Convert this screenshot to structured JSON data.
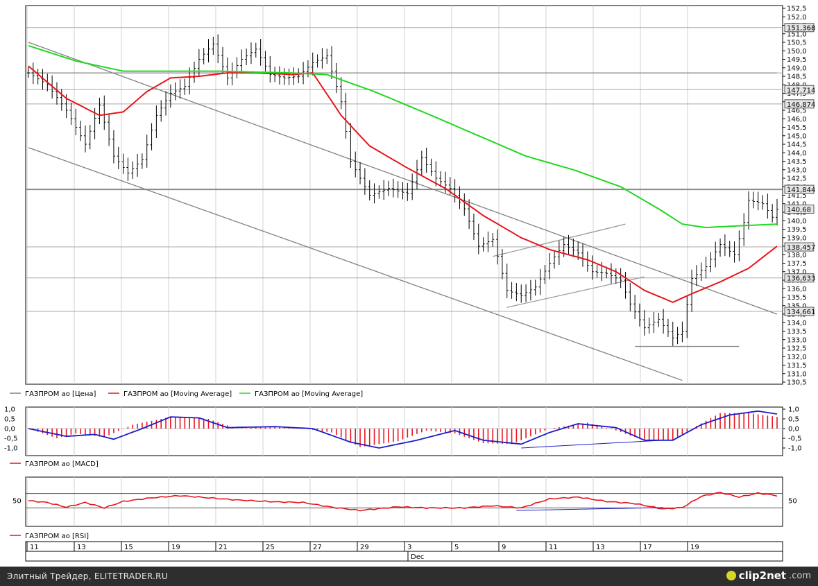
{
  "chart_data": [
    {
      "type": "line",
      "panel": "price",
      "title": "",
      "ylim": [
        130.5,
        152.5
      ],
      "y_ticks": [
        "152,5",
        "152,0",
        "151,5",
        "151,0",
        "150,5",
        "150,0",
        "149,5",
        "149,0",
        "148,5",
        "148,0",
        "147,5",
        "147,0",
        "146,5",
        "146,0",
        "145,5",
        "145,0",
        "144,5",
        "144,0",
        "143,5",
        "143,0",
        "142,5",
        "142,0",
        "141,5",
        "141,0",
        "140,5",
        "140,0",
        "139,5",
        "139,0",
        "138,5",
        "138,0",
        "137,5",
        "137,0",
        "136,5",
        "136,0",
        "135,5",
        "135,0",
        "134,5",
        "134,0",
        "133,5",
        "133,0",
        "132,5",
        "132,0",
        "131,5",
        "131,0",
        "130,5"
      ],
      "x_tick_labels": [
        "11",
        "13",
        "15",
        "19",
        "21",
        "25",
        "27",
        "29",
        "3",
        "5",
        "9",
        "11",
        "13",
        "17",
        "19"
      ],
      "x_month_label": "Dec",
      "price_markers": [
        "151,368",
        "147,714",
        "146,874",
        "141,844",
        "140,68",
        "138,457",
        "136,633",
        "134,661"
      ],
      "horizontal_levels": [
        151.368,
        148.7,
        147.714,
        146.874,
        141.844,
        138.457,
        136.633,
        134.661
      ],
      "grid": true,
      "legend": [
        {
          "name": "ГАЗПРОМ ао [Цена]",
          "color": "#808080"
        },
        {
          "name": "ГАЗПРОМ ао [Moving Average]",
          "color": "#e8141c"
        },
        {
          "name": "ГАЗПРОМ ао [Moving Average]",
          "color": "#20d820"
        }
      ],
      "price_path": [
        [
          0,
          148.7
        ],
        [
          4,
          148.0
        ],
        [
          8,
          146.5
        ],
        [
          12,
          144.5
        ],
        [
          15,
          146.8
        ],
        [
          18,
          143.8
        ],
        [
          21,
          142.8
        ],
        [
          24,
          143.6
        ],
        [
          27,
          146.2
        ],
        [
          30,
          147.5
        ],
        [
          33,
          147.9
        ],
        [
          36,
          149.5
        ],
        [
          39,
          150.4
        ],
        [
          42,
          148.4
        ],
        [
          45,
          149.5
        ],
        [
          48,
          150.1
        ],
        [
          51,
          148.6
        ],
        [
          54,
          148.4
        ],
        [
          57,
          148.5
        ],
        [
          60,
          149.3
        ],
        [
          63,
          149.7
        ],
        [
          66,
          147.0
        ],
        [
          68,
          143.5
        ],
        [
          72,
          141.5
        ],
        [
          76,
          141.9
        ],
        [
          80,
          141.6
        ],
        [
          83,
          143.7
        ],
        [
          86,
          142.5
        ],
        [
          89,
          141.9
        ],
        [
          92,
          140.7
        ],
        [
          95,
          138.5
        ],
        [
          98,
          138.9
        ],
        [
          101,
          135.9
        ],
        [
          104,
          135.6
        ],
        [
          107,
          136.1
        ],
        [
          110,
          137.5
        ],
        [
          113,
          138.6
        ],
        [
          116,
          138.1
        ],
        [
          119,
          137.0
        ],
        [
          122,
          136.9
        ],
        [
          125,
          136.5
        ],
        [
          127,
          135.1
        ],
        [
          130,
          133.7
        ],
        [
          133,
          134.2
        ],
        [
          136,
          133.1
        ],
        [
          138,
          133.5
        ],
        [
          140,
          136.6
        ],
        [
          143,
          137.3
        ],
        [
          146,
          138.6
        ],
        [
          149,
          138.0
        ],
        [
          151,
          139.9
        ],
        [
          152,
          141.2
        ],
        [
          155,
          141.0
        ],
        [
          157,
          140.2
        ],
        [
          158,
          140.68
        ]
      ],
      "series": [
        {
          "name": "ГАЗПРОМ ао [Moving Average]",
          "color": "#e8141c",
          "values": [
            [
              0,
              149.1
            ],
            [
              8,
              147.2
            ],
            [
              15,
              146.2
            ],
            [
              20,
              146.4
            ],
            [
              25,
              147.6
            ],
            [
              30,
              148.4
            ],
            [
              36,
              148.5
            ],
            [
              42,
              148.7
            ],
            [
              48,
              148.7
            ],
            [
              56,
              148.6
            ],
            [
              60,
              148.7
            ],
            [
              66,
              146.2
            ],
            [
              72,
              144.4
            ],
            [
              80,
              143.1
            ],
            [
              88,
              141.9
            ],
            [
              96,
              140.3
            ],
            [
              104,
              139.0
            ],
            [
              110,
              138.3
            ],
            [
              118,
              137.7
            ],
            [
              124,
              137.0
            ],
            [
              130,
              135.9
            ],
            [
              136,
              135.2
            ],
            [
              140,
              135.7
            ],
            [
              146,
              136.4
            ],
            [
              152,
              137.2
            ],
            [
              158,
              138.5
            ]
          ]
        },
        {
          "name": "ГАЗПРОМ ао [Moving Average]",
          "color": "#20d820",
          "values": [
            [
              0,
              150.3
            ],
            [
              10,
              149.4
            ],
            [
              20,
              148.8
            ],
            [
              30,
              148.8
            ],
            [
              40,
              148.8
            ],
            [
              55,
              148.7
            ],
            [
              63,
              148.6
            ],
            [
              73,
              147.6
            ],
            [
              85,
              146.2
            ],
            [
              95,
              145.0
            ],
            [
              105,
              143.8
            ],
            [
              115,
              143.0
            ],
            [
              125,
              142.0
            ],
            [
              133,
              140.7
            ],
            [
              138,
              139.8
            ],
            [
              143,
              139.6
            ],
            [
              150,
              139.7
            ],
            [
              158,
              139.8
            ]
          ]
        }
      ],
      "trendlines": [
        {
          "from": [
            0,
            150.5
          ],
          "to": [
            158,
            134.5
          ],
          "color": "#808080"
        },
        {
          "from": [
            0,
            144.3
          ],
          "to": [
            138,
            130.6
          ],
          "color": "#808080"
        },
        {
          "from": [
            98,
            137.9
          ],
          "to": [
            126,
            139.8
          ],
          "color": "#999999"
        },
        {
          "from": [
            101,
            134.9
          ],
          "to": [
            130,
            136.7
          ],
          "color": "#999999"
        },
        {
          "from": [
            128,
            132.6
          ],
          "to": [
            150,
            132.6
          ],
          "color": "#888888"
        },
        {
          "from": [
            0,
            148.7
          ],
          "to": [
            158,
            148.7
          ],
          "color": "#888888"
        }
      ]
    },
    {
      "type": "bar",
      "panel": "macd",
      "ylim": [
        -1.1,
        1.1
      ],
      "y_ticks": [
        "1,0",
        "0,5",
        "0,0",
        "-0,5",
        "-1,0"
      ],
      "legend": [
        {
          "name": "ГАЗПРОМ ао [MACD]",
          "color": "#e8141c"
        }
      ],
      "histogram_keys": [
        [
          0,
          0.0
        ],
        [
          6,
          -0.5
        ],
        [
          10,
          -0.25
        ],
        [
          16,
          -0.45
        ],
        [
          22,
          0.2
        ],
        [
          30,
          0.6
        ],
        [
          38,
          0.5
        ],
        [
          44,
          0.0
        ],
        [
          52,
          0.1
        ],
        [
          58,
          0.0
        ],
        [
          64,
          -0.2
        ],
        [
          70,
          -0.95
        ],
        [
          78,
          -0.65
        ],
        [
          84,
          -0.1
        ],
        [
          90,
          -0.25
        ],
        [
          96,
          -0.75
        ],
        [
          102,
          -0.8
        ],
        [
          110,
          0.0
        ],
        [
          118,
          0.3
        ],
        [
          124,
          -0.1
        ],
        [
          130,
          -0.6
        ],
        [
          136,
          -0.6
        ],
        [
          140,
          0.0
        ],
        [
          146,
          0.8
        ],
        [
          152,
          0.8
        ],
        [
          158,
          0.6
        ]
      ],
      "signal_keys": [
        [
          0,
          0.0
        ],
        [
          8,
          -0.4
        ],
        [
          14,
          -0.3
        ],
        [
          18,
          -0.55
        ],
        [
          24,
          0.0
        ],
        [
          30,
          0.6
        ],
        [
          36,
          0.55
        ],
        [
          42,
          0.05
        ],
        [
          52,
          0.1
        ],
        [
          60,
          0.0
        ],
        [
          68,
          -0.7
        ],
        [
          74,
          -1.0
        ],
        [
          82,
          -0.6
        ],
        [
          90,
          -0.1
        ],
        [
          96,
          -0.6
        ],
        [
          104,
          -0.8
        ],
        [
          110,
          -0.2
        ],
        [
          116,
          0.25
        ],
        [
          124,
          0.05
        ],
        [
          130,
          -0.6
        ],
        [
          136,
          -0.6
        ],
        [
          142,
          0.2
        ],
        [
          148,
          0.7
        ],
        [
          154,
          0.9
        ],
        [
          158,
          0.75
        ]
      ],
      "signal_color": "#1a1acd",
      "divergence_line": {
        "from": [
          104,
          -1.0
        ],
        "to": [
          134,
          -0.6
        ],
        "color": "#1a1acd"
      }
    },
    {
      "type": "line",
      "panel": "rsi",
      "ylim": [
        0,
        100
      ],
      "y_ticks": [
        "50"
      ],
      "levels": [
        70,
        30
      ],
      "legend": [
        {
          "name": "ГАЗПРОМ ао [RSI]",
          "color": "#e8141c"
        }
      ],
      "rsi_keys": [
        [
          0,
          50
        ],
        [
          4,
          45
        ],
        [
          8,
          32
        ],
        [
          12,
          45
        ],
        [
          16,
          30
        ],
        [
          20,
          48
        ],
        [
          26,
          58
        ],
        [
          32,
          64
        ],
        [
          38,
          58
        ],
        [
          44,
          52
        ],
        [
          52,
          47
        ],
        [
          58,
          45
        ],
        [
          64,
          32
        ],
        [
          70,
          23
        ],
        [
          78,
          33
        ],
        [
          84,
          30
        ],
        [
          92,
          30
        ],
        [
          98,
          36
        ],
        [
          104,
          30
        ],
        [
          110,
          55
        ],
        [
          116,
          60
        ],
        [
          122,
          48
        ],
        [
          128,
          42
        ],
        [
          134,
          27
        ],
        [
          138,
          31
        ],
        [
          142,
          62
        ],
        [
          146,
          73
        ],
        [
          150,
          60
        ],
        [
          154,
          71
        ],
        [
          158,
          64
        ]
      ],
      "divergence_line": {
        "from": [
          103,
          23
        ],
        "to": [
          134,
          31
        ],
        "color": "#1a1acd"
      }
    }
  ],
  "footer": {
    "left_text": "Элитный Трейдер, ELITETRADER.RU",
    "brand": "clip2net",
    "brand_suffix": ".com",
    "logo_icon": "clip2net-logo-icon"
  }
}
